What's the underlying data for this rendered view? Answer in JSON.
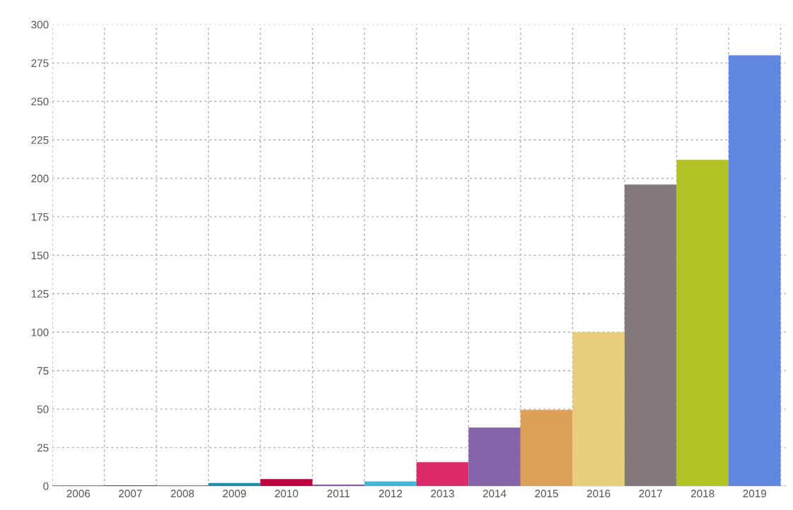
{
  "chart_data": {
    "type": "bar",
    "categories": [
      "2006",
      "2007",
      "2008",
      "2009",
      "2010",
      "2011",
      "2012",
      "2013",
      "2014",
      "2015",
      "2016",
      "2017",
      "2018",
      "2019"
    ],
    "values": [
      0.5,
      0.5,
      0.5,
      2,
      4.5,
      1,
      3,
      15.5,
      38,
      49.5,
      100,
      196,
      212,
      280
    ],
    "colors": [
      "#6a9a3a",
      "#a03050",
      "#8a6aa0",
      "#1e8fa8",
      "#c0003f",
      "#8a5aa0",
      "#40b8d8",
      "#dc2a6a",
      "#8664aa",
      "#dca058",
      "#e8ce7c",
      "#84787c",
      "#b2c224",
      "#6088e0"
    ],
    "ylim": [
      0,
      300
    ],
    "yticks": [
      0,
      25,
      50,
      75,
      100,
      125,
      150,
      175,
      200,
      225,
      250,
      275,
      300
    ],
    "grid": true
  }
}
